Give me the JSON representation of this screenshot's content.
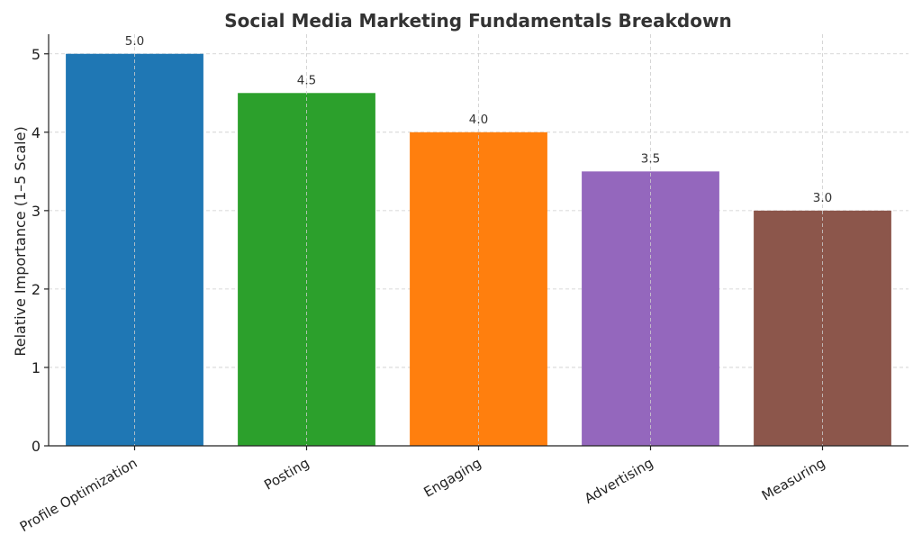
{
  "chart_data": {
    "type": "bar",
    "title": "Social Media Marketing Fundamentals Breakdown",
    "xlabel": "",
    "ylabel": "Relative Importance (1–5 Scale)",
    "categories": [
      "Profile Optimization",
      "Posting",
      "Engaging",
      "Advertising",
      "Measuring"
    ],
    "values": [
      5.0,
      4.5,
      4.0,
      3.5,
      3.0
    ],
    "value_labels": [
      "5.0",
      "4.5",
      "4.0",
      "3.5",
      "3.0"
    ],
    "colors": [
      "#1f77b4",
      "#2ca02c",
      "#ff7f0e",
      "#9467bd",
      "#8c564b"
    ],
    "ylim": [
      0,
      5.25
    ],
    "yticks": [
      0,
      1,
      2,
      3,
      4,
      5
    ],
    "ytick_labels": [
      "0",
      "1",
      "2",
      "3",
      "4",
      "5"
    ],
    "grid": true,
    "legend": "none"
  }
}
